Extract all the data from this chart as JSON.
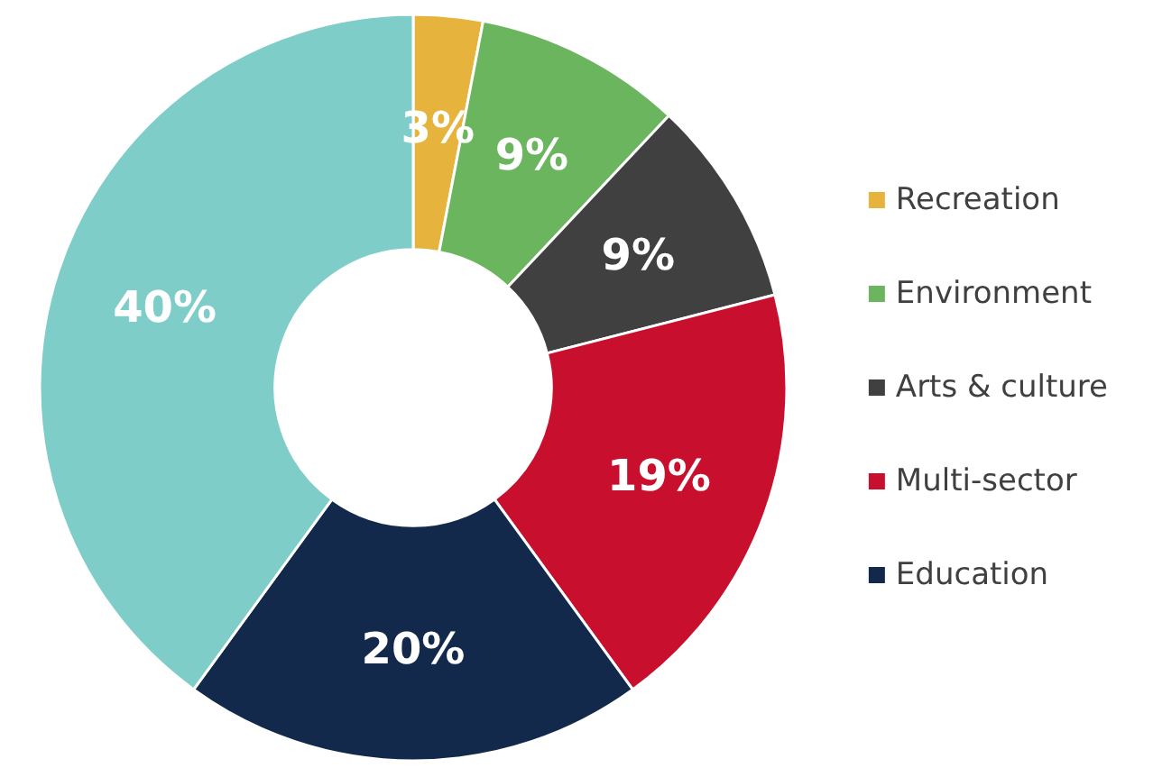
{
  "chart_data": {
    "type": "donut",
    "categories": [
      "Recreation",
      "Environment",
      "Arts & culture",
      "Multi-sector",
      "Education",
      null
    ],
    "values": [
      3,
      9,
      9,
      19,
      20,
      40
    ],
    "value_labels": [
      "3%",
      "9%",
      "9%",
      "19%",
      "20%",
      "40%"
    ],
    "colors": [
      "#e6b43c",
      "#6ab55e",
      "#404040",
      "#c8102e",
      "#13294b",
      "#7ecdc8"
    ],
    "legend": "right"
  }
}
